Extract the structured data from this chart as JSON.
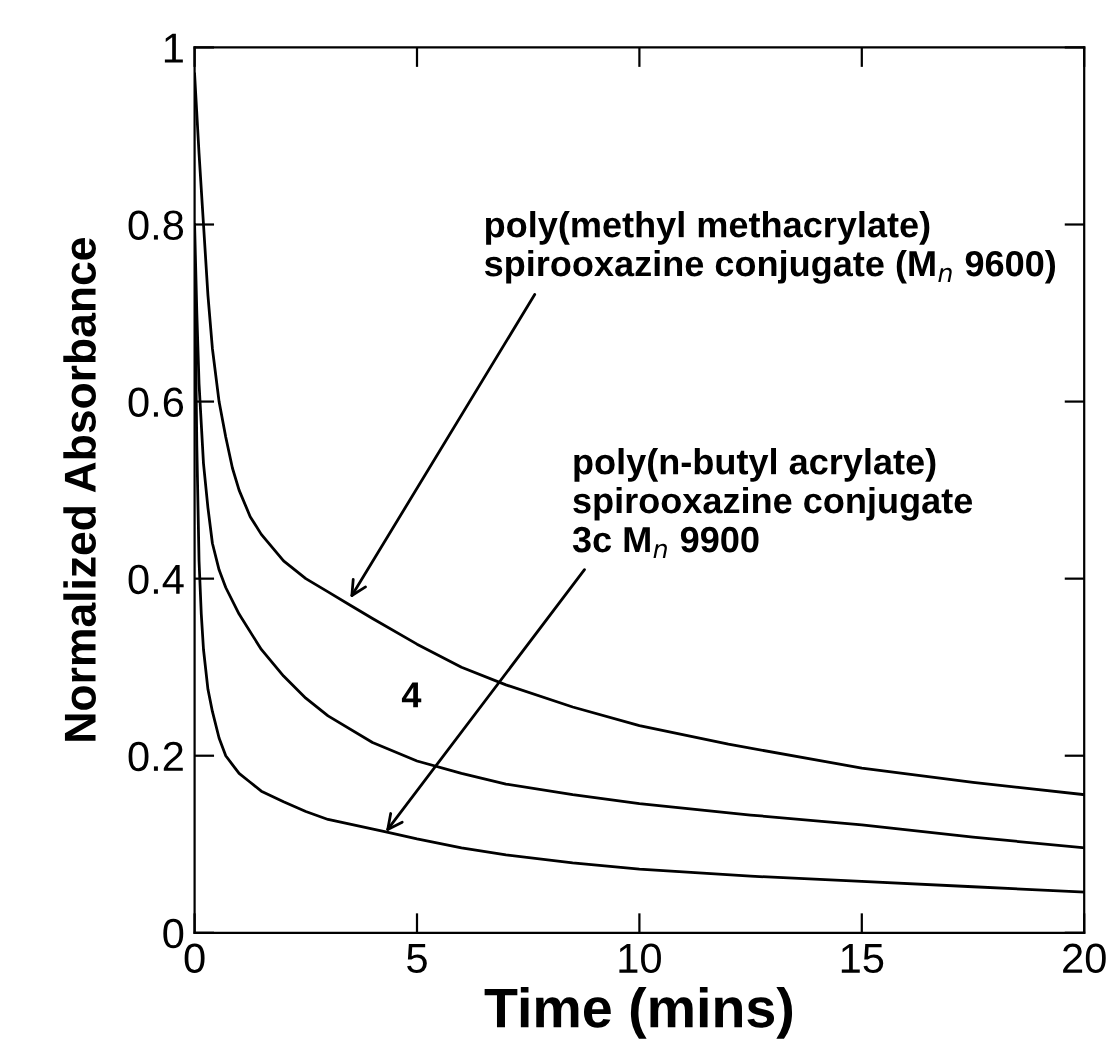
{
  "chart_data": {
    "type": "line",
    "xlabel": "Time (mins)",
    "ylabel": "Normalized Absorbance",
    "xlim": [
      0,
      20
    ],
    "ylim": [
      0,
      1
    ],
    "xticks": [
      0,
      5,
      10,
      15,
      20
    ],
    "yticks": [
      0,
      0.2,
      0.4,
      0.6,
      0.8,
      1
    ],
    "grid": false,
    "legend": false,
    "marker": "none",
    "line_style": "solid",
    "series": [
      {
        "color": "#000000",
        "x": [
          0,
          0.1,
          0.2,
          0.3,
          0.4,
          0.55,
          0.7,
          0.85,
          1,
          1.25,
          1.5,
          2,
          2.5,
          3,
          3.5,
          4,
          5,
          6,
          7,
          8.5,
          10,
          12,
          15,
          17.5,
          20
        ],
        "values": [
          0.97,
          0.88,
          0.8,
          0.72,
          0.66,
          0.6,
          0.56,
          0.525,
          0.5,
          0.47,
          0.45,
          0.42,
          0.4,
          0.385,
          0.37,
          0.355,
          0.326,
          0.3,
          0.28,
          0.255,
          0.234,
          0.213,
          0.186,
          0.17,
          0.156
        ]
      },
      {
        "color": "#000000",
        "name": "4",
        "x": [
          0,
          0.05,
          0.1,
          0.2,
          0.3,
          0.4,
          0.55,
          0.7,
          1,
          1.5,
          2,
          2.5,
          3,
          4,
          5,
          6,
          7,
          8.5,
          10,
          12.5,
          15,
          17.5,
          20
        ],
        "values": [
          0.8,
          0.7,
          0.62,
          0.53,
          0.48,
          0.44,
          0.41,
          0.39,
          0.36,
          0.32,
          0.29,
          0.265,
          0.245,
          0.215,
          0.194,
          0.18,
          0.168,
          0.156,
          0.146,
          0.133,
          0.122,
          0.108,
          0.096
        ]
      },
      {
        "color": "#000000",
        "x": [
          0,
          0.05,
          0.1,
          0.15,
          0.2,
          0.3,
          0.4,
          0.55,
          0.7,
          0.85,
          1,
          1.25,
          1.5,
          2,
          2.5,
          3,
          4.3,
          5,
          6,
          7,
          8.5,
          10,
          12.5,
          15,
          17.5,
          20
        ],
        "values": [
          0.75,
          0.55,
          0.42,
          0.36,
          0.32,
          0.275,
          0.25,
          0.22,
          0.2,
          0.19,
          0.18,
          0.17,
          0.16,
          0.148,
          0.137,
          0.128,
          0.114,
          0.106,
          0.096,
          0.088,
          0.079,
          0.072,
          0.064,
          0.058,
          0.052,
          0.046
        ]
      }
    ],
    "annotations": [
      {
        "text": "poly(methyl methacrylate)\nspirooxazine conjugate (M$_{n}$ 9600)",
        "x": 3.5,
        "y": 0.378
      },
      {
        "text": "poly(n-butyl acrylate)\nspirooxazine conjugate\n3c M$_{n}$ 9900",
        "x": 4.3,
        "y": 0.114
      }
    ]
  }
}
